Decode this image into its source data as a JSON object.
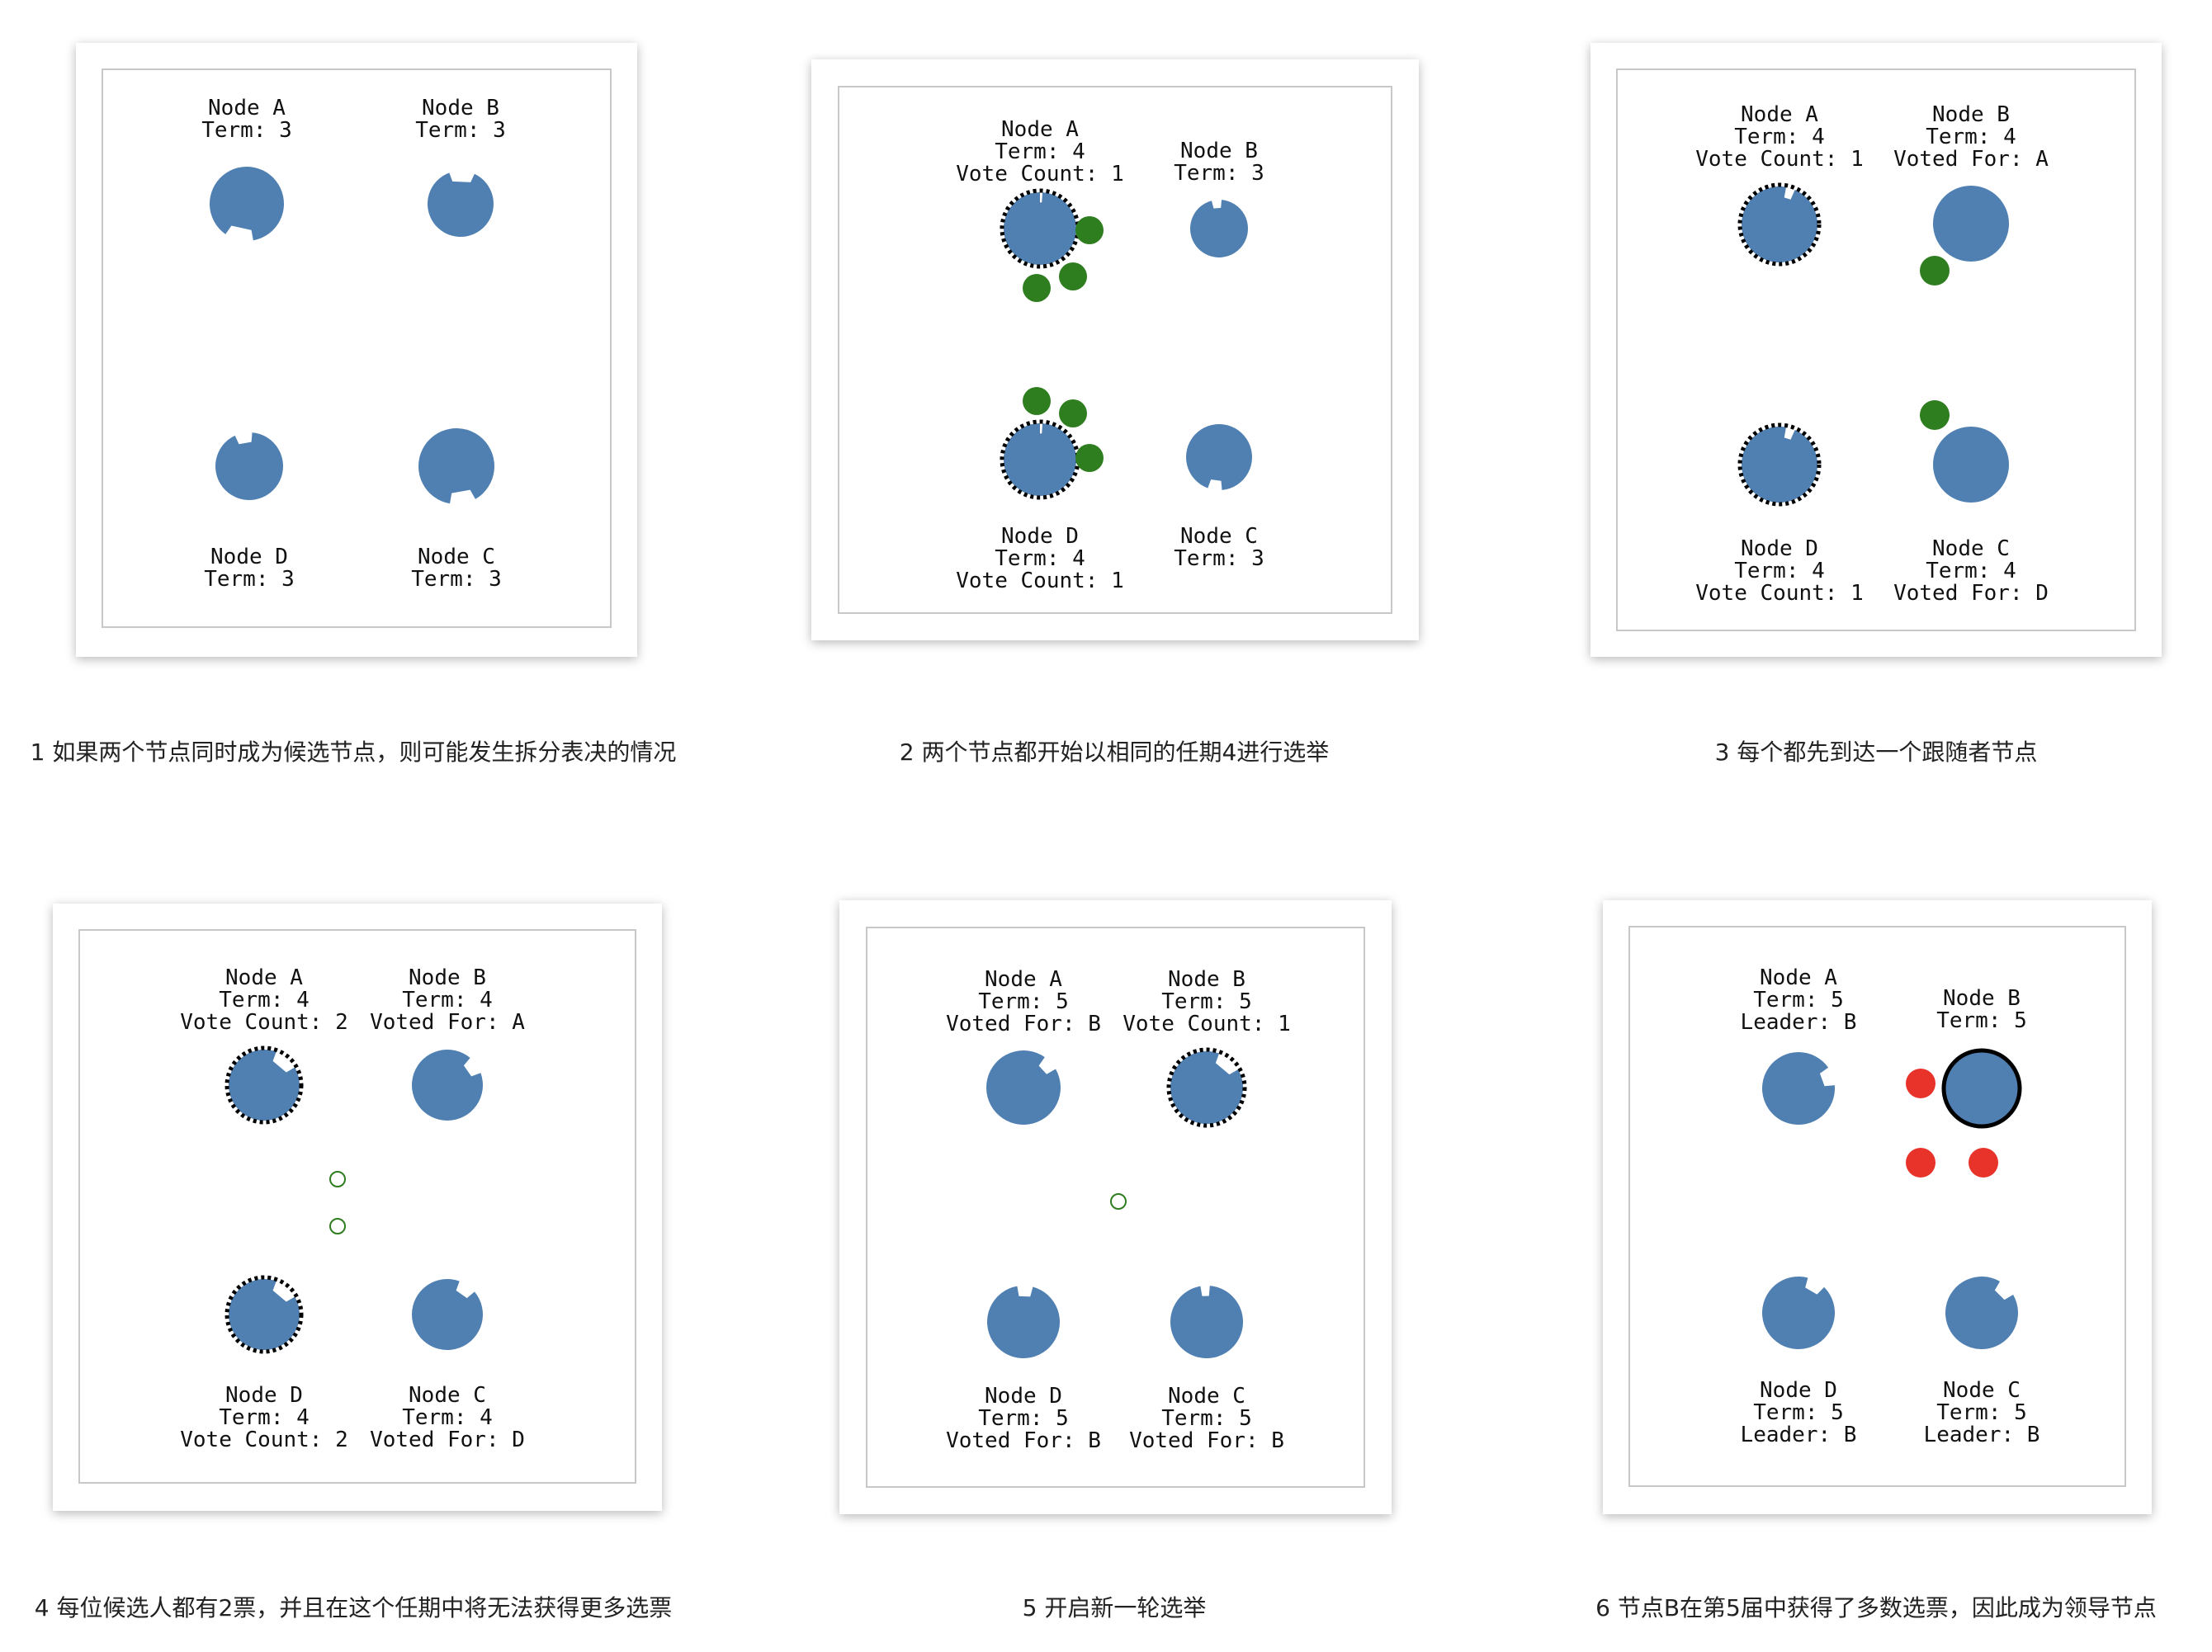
{
  "colors": {
    "node": "#5080b2",
    "vote_granted": "#2e7d1f",
    "heartbeat": "#e8332a",
    "outline": "#000000",
    "frame": "#c8c8c8"
  },
  "panels": [
    {
      "caption": "1 如果两个节点同时成为候选节点，则可能发生拆分表决的情况",
      "nodes": [
        {
          "id": "A",
          "lines": [
            "Node A",
            "Term: 3"
          ],
          "role": "follower"
        },
        {
          "id": "B",
          "lines": [
            "Node B",
            "Term: 3"
          ],
          "role": "follower"
        },
        {
          "id": "D",
          "lines": [
            "Node D",
            "Term: 3"
          ],
          "role": "follower"
        },
        {
          "id": "C",
          "lines": [
            "Node C",
            "Term: 3"
          ],
          "role": "follower"
        }
      ]
    },
    {
      "caption": "2 两个节点都开始以相同的任期4进行选举",
      "nodes": [
        {
          "id": "A",
          "lines": [
            "Node A",
            "Term: 4",
            "Vote Count: 1"
          ],
          "role": "candidate"
        },
        {
          "id": "B",
          "lines": [
            "Node B",
            "Term: 3"
          ],
          "role": "follower"
        },
        {
          "id": "D",
          "lines": [
            "Node D",
            "Term: 4",
            "Vote Count: 1"
          ],
          "role": "candidate"
        },
        {
          "id": "C",
          "lines": [
            "Node C",
            "Term: 3"
          ],
          "role": "follower"
        }
      ]
    },
    {
      "caption": "3 每个都先到达一个跟随者节点",
      "nodes": [
        {
          "id": "A",
          "lines": [
            "Node A",
            "Term: 4",
            "Vote Count: 1"
          ],
          "role": "candidate"
        },
        {
          "id": "B",
          "lines": [
            "Node B",
            "Term: 4",
            "Voted For: A"
          ],
          "role": "follower"
        },
        {
          "id": "D",
          "lines": [
            "Node D",
            "Term: 4",
            "Vote Count: 1"
          ],
          "role": "candidate"
        },
        {
          "id": "C",
          "lines": [
            "Node C",
            "Term: 4",
            "Voted For: D"
          ],
          "role": "follower"
        }
      ]
    },
    {
      "caption": "4 每位候选人都有2票，并且在这个任期中将无法获得更多选票",
      "nodes": [
        {
          "id": "A",
          "lines": [
            "Node A",
            "Term: 4",
            "Vote Count: 2"
          ],
          "role": "candidate"
        },
        {
          "id": "B",
          "lines": [
            "Node B",
            "Term: 4",
            "Voted For: A"
          ],
          "role": "follower"
        },
        {
          "id": "D",
          "lines": [
            "Node D",
            "Term: 4",
            "Vote Count: 2"
          ],
          "role": "candidate"
        },
        {
          "id": "C",
          "lines": [
            "Node C",
            "Term: 4",
            "Voted For: D"
          ],
          "role": "follower"
        }
      ]
    },
    {
      "caption": "5 开启新一轮选举",
      "nodes": [
        {
          "id": "A",
          "lines": [
            "Node A",
            "Term: 5",
            "Voted For: B"
          ],
          "role": "follower"
        },
        {
          "id": "B",
          "lines": [
            "Node B",
            "Term: 5",
            "Vote Count: 1"
          ],
          "role": "candidate"
        },
        {
          "id": "D",
          "lines": [
            "Node D",
            "Term: 5",
            "Voted For: B"
          ],
          "role": "follower"
        },
        {
          "id": "C",
          "lines": [
            "Node C",
            "Term: 5",
            "Voted For: B"
          ],
          "role": "follower"
        }
      ]
    },
    {
      "caption": "6 节点B在第5届中获得了多数选票，因此成为领导节点",
      "nodes": [
        {
          "id": "A",
          "lines": [
            "Node A",
            "Term: 5",
            "Leader: B"
          ],
          "role": "follower"
        },
        {
          "id": "B",
          "lines": [
            "Node B",
            "Term: 5"
          ],
          "role": "leader"
        },
        {
          "id": "D",
          "lines": [
            "Node D",
            "Term: 5",
            "Leader: B"
          ],
          "role": "follower"
        },
        {
          "id": "C",
          "lines": [
            "Node C",
            "Term: 5",
            "Leader: B"
          ],
          "role": "follower"
        }
      ]
    }
  ]
}
